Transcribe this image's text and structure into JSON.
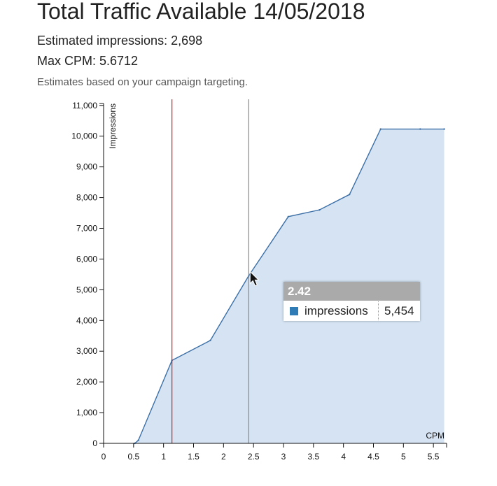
{
  "page": {
    "title": "Total Traffic Available 14/05/2018",
    "estimated_impressions": "Estimated impressions: 2,698",
    "max_cpm": "Max CPM: 5.6712",
    "note": "Estimates based on your campaign targeting."
  },
  "colors": {
    "area_fill": "#d5e3f2",
    "line": "#3b6fa6",
    "red_marker": "#cc2222",
    "gray_marker": "#888888",
    "tooltip_header": "#aaaaaa",
    "swatch": "#2f7bb6"
  },
  "tooltip": {
    "x_value": "2.42",
    "series_name": "impressions",
    "series_value": "5,454"
  },
  "chart_data": {
    "type": "area",
    "title": "",
    "xlabel": "CPM",
    "ylabel": "Impressions",
    "xlim": [
      0,
      5.72
    ],
    "ylim": [
      0,
      11200
    ],
    "grid": false,
    "x_ticks": [
      0,
      0.5,
      1,
      1.5,
      2,
      2.5,
      3,
      3.5,
      4,
      4.5,
      5,
      5.5
    ],
    "x_tick_labels": [
      "0",
      "0.5",
      "1",
      "1.5",
      "2",
      "2.5",
      "3",
      "3.5",
      "4",
      "4.5",
      "5",
      "5.5"
    ],
    "y_ticks": [
      0,
      1000,
      2000,
      3000,
      4000,
      5000,
      6000,
      7000,
      8000,
      9000,
      10000,
      11000
    ],
    "y_tick_labels": [
      "0",
      "1,000",
      "2,000",
      "3,000",
      "4,000",
      "5,000",
      "6,000",
      "7,000",
      "8,000",
      "9,000",
      "10,000",
      "11,000"
    ],
    "series": [
      {
        "name": "impressions",
        "x": [
          0.52,
          0.58,
          1.14,
          1.78,
          2.42,
          3.08,
          3.6,
          4.1,
          4.62,
          5.28,
          5.68
        ],
        "y": [
          0,
          100,
          2700,
          3350,
          5454,
          7380,
          7600,
          8100,
          10230,
          10230,
          10230
        ]
      }
    ],
    "markers": [
      {
        "x": 1.14,
        "kind": "max-cpm-line"
      },
      {
        "x": 2.42,
        "kind": "hover-line"
      }
    ]
  }
}
